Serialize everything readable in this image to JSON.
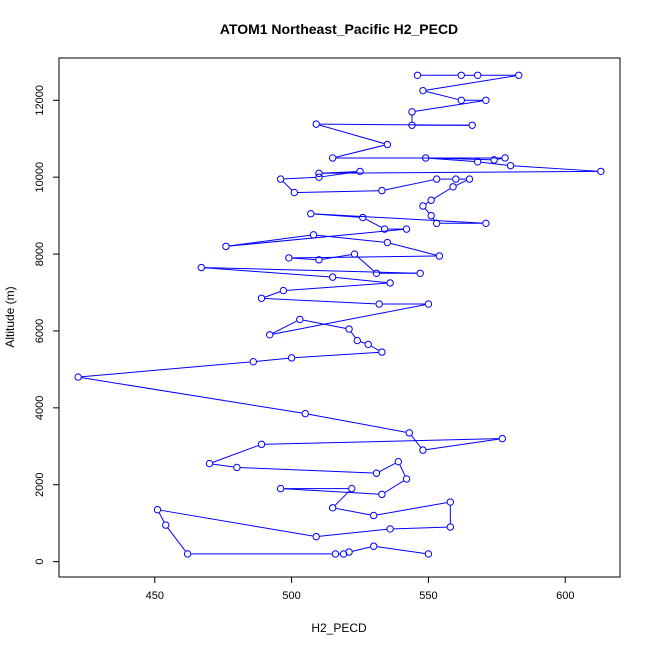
{
  "chart_data": {
    "type": "line",
    "title": "ATOM1 Northeast_Pacific H2_PECD",
    "xlabel": "H2_PECD",
    "ylabel": "Altitude (m)",
    "xlim": [
      415,
      620
    ],
    "ylim": [
      -400,
      13100
    ],
    "x_ticks": [
      450,
      500,
      550,
      600
    ],
    "y_ticks": [
      0,
      2000,
      4000,
      6000,
      8000,
      10000,
      12000
    ],
    "grid": false,
    "legend": "none",
    "color": "#0000ff",
    "series": [
      {
        "points": [
          [
            546,
            12650
          ],
          [
            562,
            12650
          ],
          [
            568,
            12650
          ],
          [
            583,
            12650
          ],
          [
            548,
            12250
          ],
          [
            562,
            12000
          ],
          [
            571,
            12000
          ],
          [
            544,
            11700
          ],
          [
            544,
            11350
          ],
          [
            566,
            11350
          ],
          [
            509,
            11380
          ],
          [
            535,
            10850
          ],
          [
            515,
            10500
          ],
          [
            578,
            10500
          ],
          [
            574,
            10450
          ],
          [
            549,
            10500
          ],
          [
            568,
            10400
          ],
          [
            580,
            10300
          ],
          [
            613,
            10150
          ],
          [
            510,
            10100
          ],
          [
            525,
            10150
          ],
          [
            510,
            10000
          ],
          [
            496,
            9950
          ],
          [
            501,
            9600
          ],
          [
            533,
            9650
          ],
          [
            553,
            9950
          ],
          [
            560,
            9950
          ],
          [
            565,
            9950
          ],
          [
            559,
            9750
          ],
          [
            551,
            9400
          ],
          [
            548,
            9250
          ],
          [
            551,
            9000
          ],
          [
            553,
            8800
          ],
          [
            571,
            8800
          ],
          [
            507,
            9050
          ],
          [
            526,
            8950
          ],
          [
            534,
            8650
          ],
          [
            542,
            8650
          ],
          [
            476,
            8200
          ],
          [
            508,
            8500
          ],
          [
            535,
            8300
          ],
          [
            554,
            7950
          ],
          [
            499,
            7900
          ],
          [
            510,
            7850
          ],
          [
            523,
            8000
          ],
          [
            531,
            7500
          ],
          [
            547,
            7500
          ],
          [
            467,
            7650
          ],
          [
            515,
            7400
          ],
          [
            536,
            7250
          ],
          [
            497,
            7050
          ],
          [
            489,
            6850
          ],
          [
            532,
            6700
          ],
          [
            550,
            6700
          ],
          [
            492,
            5900
          ],
          [
            503,
            6300
          ],
          [
            521,
            6050
          ],
          [
            524,
            5750
          ],
          [
            528,
            5650
          ],
          [
            533,
            5450
          ],
          [
            500,
            5300
          ],
          [
            486,
            5200
          ],
          [
            422,
            4800
          ],
          [
            505,
            3850
          ],
          [
            543,
            3350
          ],
          [
            548,
            2900
          ],
          [
            577,
            3200
          ],
          [
            489,
            3050
          ],
          [
            470,
            2550
          ],
          [
            480,
            2450
          ],
          [
            531,
            2300
          ],
          [
            539,
            2600
          ],
          [
            542,
            2150
          ],
          [
            533,
            1750
          ],
          [
            496,
            1900
          ],
          [
            522,
            1900
          ],
          [
            515,
            1400
          ],
          [
            530,
            1200
          ],
          [
            558,
            1550
          ],
          [
            558,
            900
          ],
          [
            536,
            850
          ],
          [
            509,
            650
          ],
          [
            451,
            1350
          ],
          [
            454,
            950
          ],
          [
            462,
            200
          ],
          [
            516,
            200
          ],
          [
            519,
            200
          ],
          [
            521,
            250
          ],
          [
            530,
            400
          ],
          [
            550,
            200
          ]
        ]
      }
    ]
  }
}
